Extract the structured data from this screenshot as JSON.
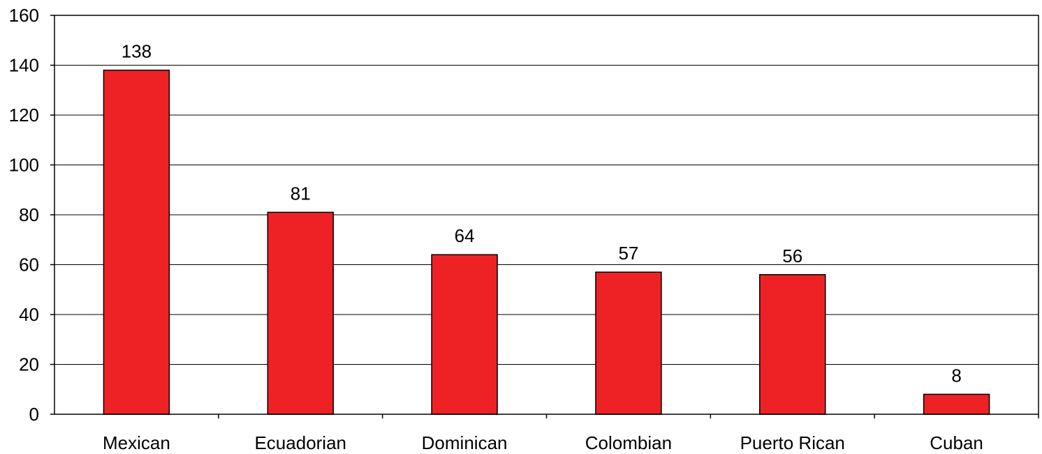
{
  "chart_data": {
    "type": "bar",
    "categories": [
      "Mexican",
      "Ecuadorian",
      "Dominican",
      "Colombian",
      "Puerto Rican",
      "Cuban"
    ],
    "values": [
      138,
      81,
      64,
      57,
      56,
      8
    ],
    "data_labels": [
      "138",
      "81",
      "64",
      "57",
      "56",
      "8"
    ],
    "title": "",
    "xlabel": "",
    "ylabel": "",
    "ylim": [
      0,
      160
    ],
    "yticks": [
      0,
      20,
      40,
      60,
      80,
      100,
      120,
      140,
      160
    ],
    "grid": true,
    "legend": "none",
    "bar_color": "#EE2224",
    "bar_edge_color": "#000000"
  }
}
